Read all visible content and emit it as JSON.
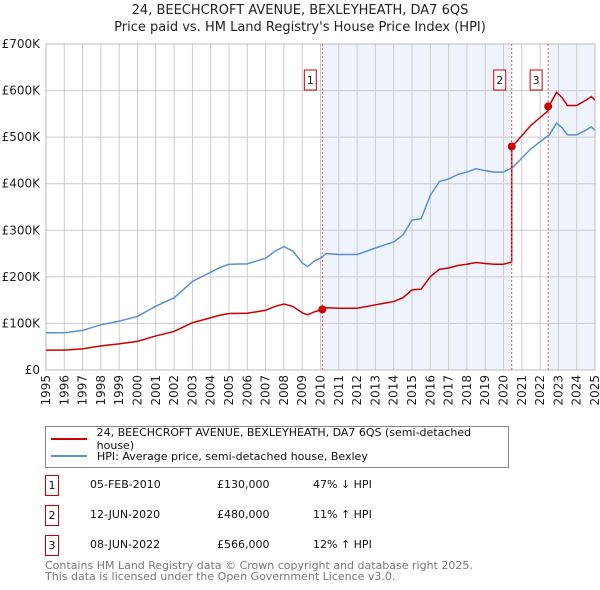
{
  "chart_data": {
    "type": "line",
    "title": "24, BEECHCROFT AVENUE, BEXLEYHEATH, DA7 6QS",
    "subtitle": "Price paid vs. HM Land Registry's House Price Index (HPI)",
    "xlabel": "",
    "ylabel": "",
    "xlim": [
      1995,
      2025
    ],
    "ylim": [
      0,
      700000
    ],
    "y_ticks": [
      0,
      100000,
      200000,
      300000,
      400000,
      500000,
      600000,
      700000
    ],
    "y_tick_labels": [
      "£0",
      "£100K",
      "£200K",
      "£300K",
      "£400K",
      "£500K",
      "£600K",
      "£700K"
    ],
    "x_ticks": [
      1995,
      1996,
      1997,
      1998,
      1999,
      2000,
      2001,
      2002,
      2003,
      2004,
      2005,
      2006,
      2007,
      2008,
      2009,
      2010,
      2011,
      2012,
      2013,
      2014,
      2015,
      2016,
      2017,
      2018,
      2019,
      2020,
      2021,
      2022,
      2023,
      2024,
      2025
    ],
    "x_tick_labels": [
      "1995",
      "1996",
      "1997",
      "1998",
      "1999",
      "2000",
      "2001",
      "2002",
      "2003",
      "2004",
      "2005",
      "2006",
      "2007",
      "2008",
      "2009",
      "2010",
      "2011",
      "2012",
      "2013",
      "2014",
      "2015",
      "2016",
      "2017",
      "2018",
      "2019",
      "2020",
      "2021",
      "2022",
      "2023",
      "2024",
      "2025"
    ],
    "grid": true,
    "legend_position": "below",
    "shaded_ranges": [
      [
        2010.1,
        2020.45
      ],
      [
        2022.44,
        2025
      ]
    ],
    "series": [
      {
        "name": "HPI: Average price, semi-detached house, Bexley",
        "color": "#5b8fd4",
        "x": [
          1995,
          1996,
          1997,
          1998,
          1999,
          2000,
          2001,
          2002,
          2003,
          2004,
          2004.5,
          2005,
          2006,
          2007,
          2007.5,
          2008,
          2008.5,
          2009,
          2009.3,
          2009.7,
          2010,
          2010.3,
          2011,
          2012,
          2012.5,
          2013,
          2014,
          2014.5,
          2015,
          2015.5,
          2016,
          2016.5,
          2017,
          2017.5,
          2018,
          2018.5,
          2019,
          2019.5,
          2020,
          2020.5,
          2021,
          2021.5,
          2022,
          2022.5,
          2022.9,
          2023.2,
          2023.5,
          2024,
          2024.5,
          2024.8,
          2025
        ],
        "y": [
          80000,
          80000,
          85000,
          97000,
          105000,
          115000,
          137000,
          155000,
          190000,
          210000,
          220000,
          227000,
          228000,
          240000,
          255000,
          265000,
          255000,
          230000,
          222000,
          235000,
          240000,
          250000,
          248000,
          248000,
          255000,
          262000,
          275000,
          290000,
          322000,
          325000,
          375000,
          405000,
          410000,
          420000,
          425000,
          432000,
          428000,
          425000,
          425000,
          435000,
          455000,
          475000,
          490000,
          505000,
          530000,
          520000,
          505000,
          505000,
          515000,
          522000,
          515000
        ]
      },
      {
        "name": "24, BEECHCROFT AVENUE, BEXLEYHEATH, DA7 6QS (semi-detached house)",
        "color": "#cc0000",
        "derived_from": "HPI scaled to each sale price"
      }
    ],
    "sales": [
      {
        "id": "1",
        "x": 2010.1,
        "price": 130000
      },
      {
        "id": "2",
        "x": 2020.45,
        "price": 480000
      },
      {
        "id": "3",
        "x": 2022.44,
        "price": 566000
      }
    ]
  },
  "legend": {
    "property": "24, BEECHCROFT AVENUE, BEXLEYHEATH, DA7 6QS (semi-detached house)",
    "hpi": "HPI: Average price, semi-detached house, Bexley"
  },
  "transactions": [
    {
      "num": "1",
      "date": "05-FEB-2010",
      "price": "£130,000",
      "hpi": "47% ↓ HPI"
    },
    {
      "num": "2",
      "date": "12-JUN-2020",
      "price": "£480,000",
      "hpi": "11% ↑ HPI"
    },
    {
      "num": "3",
      "date": "08-JUN-2022",
      "price": "£566,000",
      "hpi": "12% ↑ HPI"
    }
  ],
  "footer": {
    "line1": "Contains HM Land Registry data © Crown copyright and database right 2025.",
    "line2": "This data is licensed under the Open Government Licence v3.0."
  }
}
